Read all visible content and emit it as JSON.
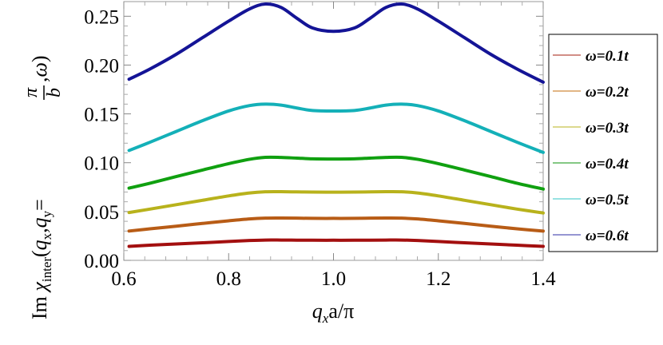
{
  "chart_data": {
    "type": "line",
    "xlabel": {
      "var": "q",
      "sub": "x",
      "rest": "a/π"
    },
    "ylabel": {
      "prefix": "Im ",
      "chi": "χ",
      "chi_sub": "inter",
      "open": "(",
      "qx": "q",
      "qx_sub": "x",
      "comma1": ",",
      "qy": "q",
      "qy_sub": "y",
      "eq": "=",
      "frac_num": "π",
      "frac_den": "b",
      "comma2": ",",
      "omega": "ω",
      "close": ")"
    },
    "xlim": [
      0.6,
      1.4
    ],
    "ylim": [
      0.0,
      0.265
    ],
    "xticks": [
      0.6,
      0.8,
      1.0,
      1.2,
      1.4
    ],
    "xtick_labels": [
      "0.6",
      "0.8",
      "1.0",
      "1.2",
      "1.4"
    ],
    "yticks": [
      0.0,
      0.05,
      0.1,
      0.15,
      0.2,
      0.25
    ],
    "ytick_labels": [
      "0.00",
      "0.05",
      "0.10",
      "0.15",
      "0.20",
      "0.25"
    ],
    "legend_placement": "right",
    "x": [
      0.61,
      0.65,
      0.7,
      0.75,
      0.8,
      0.84,
      0.87,
      0.9,
      0.93,
      0.96,
      1.0,
      1.04,
      1.07,
      1.1,
      1.13,
      1.16,
      1.2,
      1.25,
      1.3,
      1.35,
      1.4
    ],
    "series": [
      {
        "name": "ω=0.1t",
        "legend_color": "#b84a3e",
        "line_color": "#a30f0f",
        "values": [
          0.0143,
          0.0155,
          0.0168,
          0.018,
          0.0193,
          0.0203,
          0.0208,
          0.0208,
          0.0207,
          0.0206,
          0.0206,
          0.0206,
          0.0207,
          0.0208,
          0.0208,
          0.0203,
          0.0193,
          0.018,
          0.0168,
          0.0155,
          0.0143
        ]
      },
      {
        "name": "ω=0.2t",
        "legend_color": "#d08a3c",
        "line_color": "#b85c16",
        "values": [
          0.03,
          0.0323,
          0.035,
          0.0378,
          0.0405,
          0.0424,
          0.0432,
          0.0433,
          0.0432,
          0.043,
          0.043,
          0.043,
          0.0432,
          0.0433,
          0.0432,
          0.0424,
          0.0405,
          0.0378,
          0.035,
          0.0323,
          0.03
        ]
      },
      {
        "name": "ω=0.3t",
        "legend_color": "#c6c24a",
        "line_color": "#b8b21c",
        "values": [
          0.049,
          0.0525,
          0.057,
          0.0615,
          0.066,
          0.069,
          0.0702,
          0.0703,
          0.0701,
          0.0699,
          0.0698,
          0.0699,
          0.0701,
          0.0703,
          0.0702,
          0.069,
          0.066,
          0.0615,
          0.057,
          0.0525,
          0.0485
        ]
      },
      {
        "name": "ω=0.4t",
        "legend_color": "#3aa83a",
        "line_color": "#10a010",
        "values": [
          0.074,
          0.079,
          0.0858,
          0.0925,
          0.099,
          0.1035,
          0.1055,
          0.1054,
          0.1047,
          0.104,
          0.1038,
          0.104,
          0.1047,
          0.1054,
          0.1055,
          0.1035,
          0.099,
          0.0925,
          0.0858,
          0.079,
          0.073
        ]
      },
      {
        "name": "ω=0.5t",
        "legend_color": "#5ad0d0",
        "line_color": "#14b0b8",
        "values": [
          0.1125,
          0.121,
          0.132,
          0.143,
          0.153,
          0.1585,
          0.16,
          0.159,
          0.156,
          0.1535,
          0.153,
          0.1535,
          0.156,
          0.159,
          0.16,
          0.1585,
          0.153,
          0.143,
          0.132,
          0.121,
          0.1105
        ]
      },
      {
        "name": "ω=0.6t",
        "legend_color": "#5858b8",
        "line_color": "#141496",
        "values": [
          0.1855,
          0.196,
          0.211,
          0.228,
          0.245,
          0.2575,
          0.2625,
          0.259,
          0.248,
          0.238,
          0.2345,
          0.238,
          0.248,
          0.259,
          0.2625,
          0.2575,
          0.245,
          0.228,
          0.211,
          0.196,
          0.1825
        ]
      }
    ]
  }
}
